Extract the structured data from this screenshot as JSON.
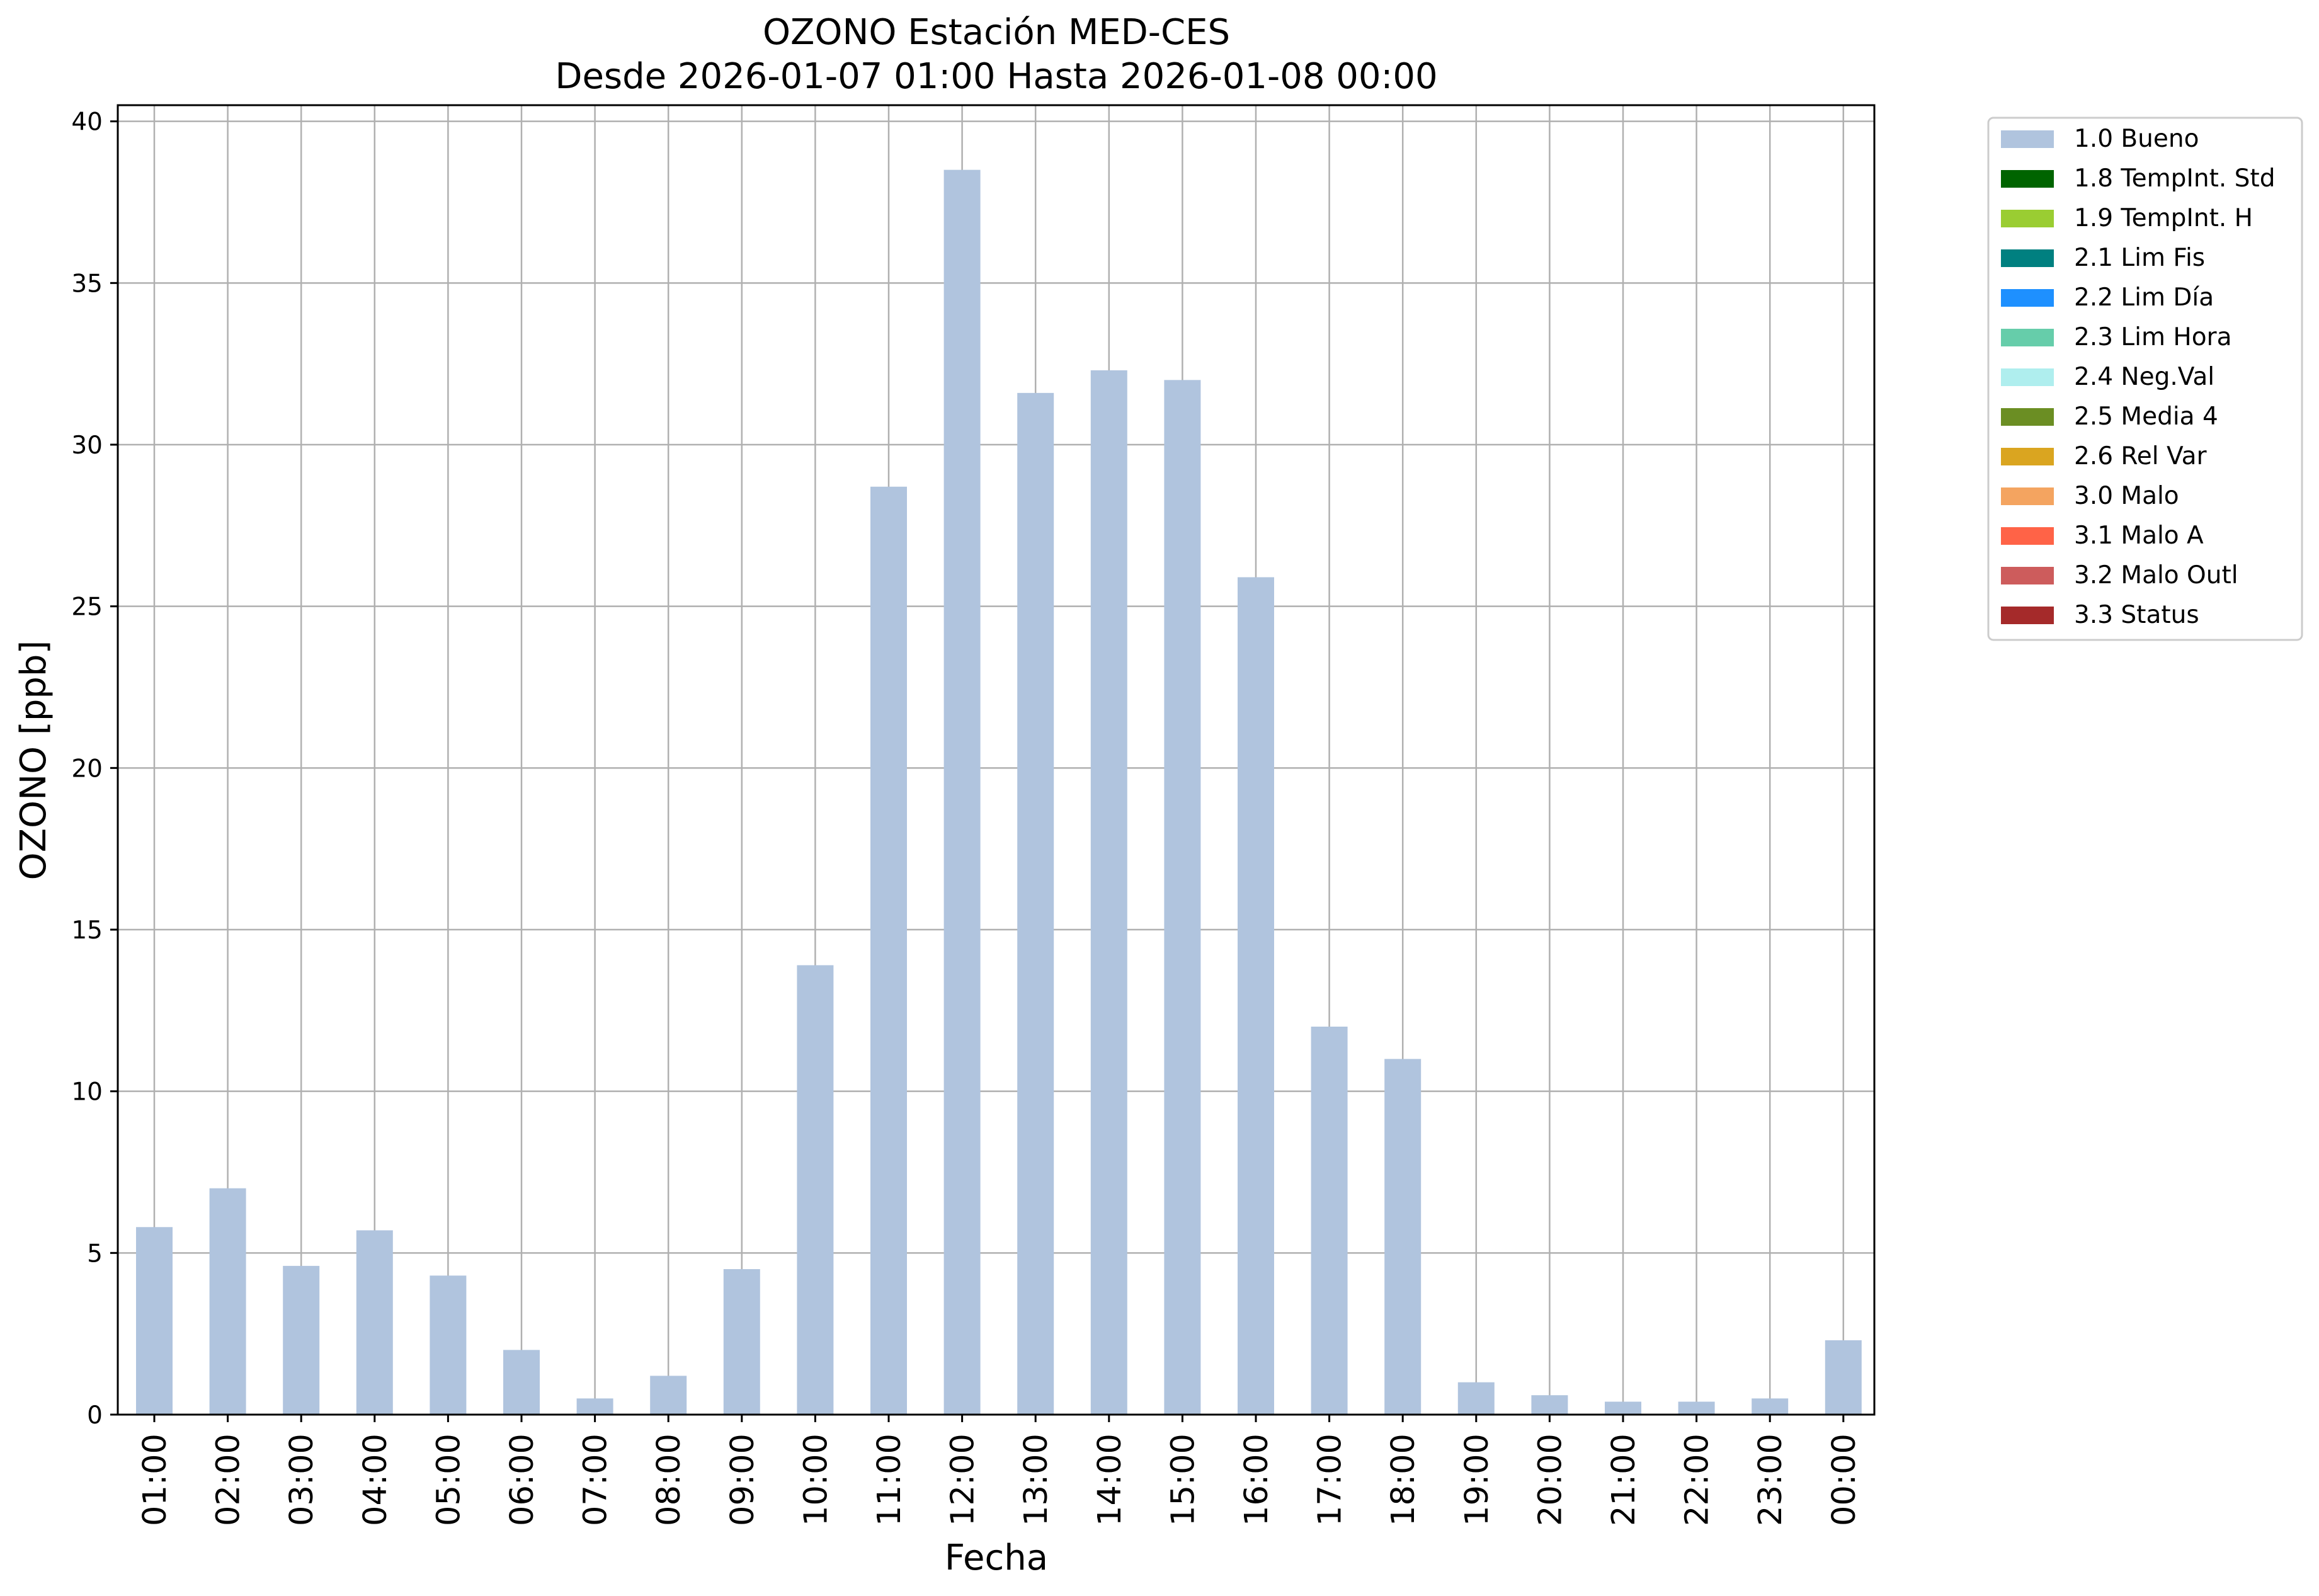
{
  "chart_data": {
    "type": "bar",
    "title": "OZONO Estación MED-CES",
    "subtitle": "Desde 2026-01-07 01:00 Hasta 2026-01-08 00:00",
    "xlabel": "Fecha",
    "ylabel": "OZONO [ppb]",
    "ylim": [
      0,
      40.5
    ],
    "yticks": [
      0,
      5,
      10,
      15,
      20,
      25,
      30,
      35,
      40
    ],
    "grid": true,
    "legend_position": "outside-top-right",
    "categories": [
      "01:00",
      "02:00",
      "03:00",
      "04:00",
      "05:00",
      "06:00",
      "07:00",
      "08:00",
      "09:00",
      "10:00",
      "11:00",
      "12:00",
      "13:00",
      "14:00",
      "15:00",
      "16:00",
      "17:00",
      "18:00",
      "19:00",
      "20:00",
      "21:00",
      "22:00",
      "23:00",
      "00:00"
    ],
    "series": [
      {
        "name": "1.0 Bueno",
        "color": "#b0c4de",
        "values": [
          5.8,
          7.0,
          4.6,
          5.7,
          4.3,
          2.0,
          0.5,
          1.2,
          4.5,
          13.9,
          28.7,
          38.5,
          31.6,
          32.3,
          32.0,
          25.9,
          12.0,
          11.0,
          1.0,
          0.6,
          0.4,
          0.4,
          0.5,
          2.3
        ]
      }
    ],
    "legend": [
      {
        "label": "1.0 Bueno",
        "color": "#b0c4de"
      },
      {
        "label": "1.8 TempInt. Std",
        "color": "#006400"
      },
      {
        "label": "1.9 TempInt. H",
        "color": "#9acd32"
      },
      {
        "label": "2.1 Lim Fis",
        "color": "#008080"
      },
      {
        "label": "2.2 Lim Día",
        "color": "#1e90ff"
      },
      {
        "label": "2.3 Lim Hora",
        "color": "#66cdaa"
      },
      {
        "label": "2.4 Neg.Val",
        "color": "#afeeee"
      },
      {
        "label": "2.5 Media 4",
        "color": "#6b8e23"
      },
      {
        "label": "2.6 Rel Var",
        "color": "#daa520"
      },
      {
        "label": "3.0 Malo",
        "color": "#f4a460"
      },
      {
        "label": "3.1 Malo A",
        "color": "#ff6347"
      },
      {
        "label": "3.2 Malo Outl",
        "color": "#cd5c5c"
      },
      {
        "label": "3.3 Status",
        "color": "#a52a2a"
      }
    ]
  }
}
